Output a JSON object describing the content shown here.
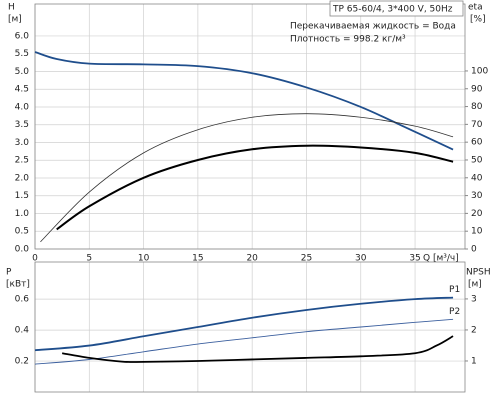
{
  "chart_data": [
    {
      "type": "line",
      "title": "TP 65-60/4, 3*400 V, 50Hz",
      "annotations": [
        "Перекачиваемая жидкость = Вода",
        "Плотность = 998.2 кг/м³"
      ],
      "ylabel": "H",
      "yunit": "[м]",
      "y2label": "eta",
      "y2unit": "[%]",
      "xlabel": "Q [м³/ч]",
      "xlim": [
        0,
        39.6
      ],
      "xticks": [
        0,
        5,
        10,
        15,
        20,
        25,
        30,
        35
      ],
      "ylim": [
        0,
        6.9
      ],
      "yticks": [
        {
          "value": 0,
          "label": "0.0"
        },
        0.5,
        {
          "value": 1,
          "label": "1.0"
        },
        1.5,
        {
          "value": 2,
          "label": "2.0"
        },
        2.5,
        {
          "value": 3,
          "label": "3.0"
        },
        3.5,
        {
          "value": 4,
          "label": "4.0"
        },
        4.5,
        {
          "value": 5,
          "label": "5.0"
        },
        5.5,
        {
          "value": 6,
          "label": "6.0"
        }
      ],
      "y2lim": [
        0,
        137.6
      ],
      "y2ticks": [
        0,
        10,
        20,
        30,
        40,
        50,
        60,
        70,
        80,
        90,
        100
      ],
      "grid": true,
      "series": [
        {
          "color": "#1f4e8c",
          "line_width": 1.8,
          "x": [
            0,
            2,
            5,
            10,
            15,
            20,
            25,
            30,
            35,
            38.5
          ],
          "values": [
            5.55,
            5.35,
            5.22,
            5.2,
            5.15,
            4.95,
            4.55,
            4.0,
            3.3,
            2.8
          ]
        },
        {
          "color": "#333333",
          "line_width": 0.8,
          "axis": "y2",
          "x": [
            0.5,
            5,
            10,
            15,
            20,
            25,
            30,
            35,
            38.5
          ],
          "values": [
            4,
            32,
            54,
            67,
            74,
            76,
            74,
            69,
            63
          ]
        },
        {
          "color": "#000000",
          "line_width": 2,
          "axis": "y2",
          "x": [
            2,
            5,
            10,
            15,
            20,
            25,
            30,
            35,
            38.5
          ],
          "values": [
            11,
            24,
            40,
            50,
            56,
            58,
            57,
            54,
            49
          ]
        }
      ]
    },
    {
      "type": "line",
      "ylabel": "P",
      "yunit": "[кВт]",
      "y2label": "NPSH",
      "y2unit": "[м]",
      "xlim": [
        0,
        39.6
      ],
      "xticks": [
        0,
        5,
        10,
        15,
        20,
        25,
        30,
        35
      ],
      "ylim": [
        0,
        0.84
      ],
      "yticks": [
        0.2,
        0.4,
        0.6
      ],
      "y2lim": [
        0,
        4.19
      ],
      "y2ticks": [
        1,
        2,
        3
      ],
      "grid": true,
      "series": [
        {
          "name": "P1",
          "color": "#1f4e8c",
          "line_width": 1.8,
          "x": [
            0,
            5,
            10,
            15,
            20,
            25,
            30,
            35,
            38.5
          ],
          "values": [
            0.27,
            0.3,
            0.36,
            0.42,
            0.48,
            0.53,
            0.57,
            0.6,
            0.61
          ]
        },
        {
          "name": "P2",
          "color": "#3b5f9e",
          "line_width": 0.9,
          "x": [
            0,
            5,
            10,
            15,
            20,
            25,
            30,
            35,
            38.5
          ],
          "values": [
            0.18,
            0.21,
            0.26,
            0.31,
            0.35,
            0.39,
            0.42,
            0.45,
            0.47
          ]
        },
        {
          "color": "#000000",
          "line_width": 1.8,
          "axis": "y2",
          "x": [
            2.5,
            5,
            8,
            10,
            15,
            20,
            25,
            30,
            35,
            37,
            38.5
          ],
          "values": [
            1.25,
            1.1,
            0.98,
            0.97,
            1.0,
            1.05,
            1.1,
            1.15,
            1.25,
            1.5,
            1.8
          ]
        }
      ]
    }
  ]
}
